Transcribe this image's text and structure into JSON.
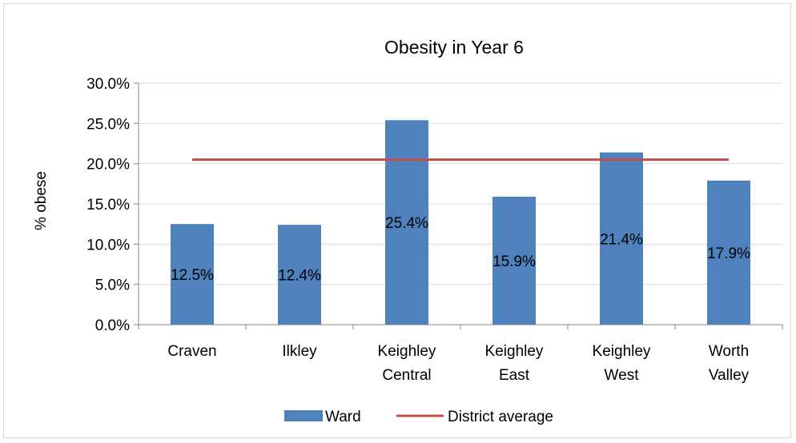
{
  "chart_data": {
    "type": "bar",
    "title": "Obesity in Year 6",
    "ylabel": "% obese",
    "xlabel": "",
    "ylim": [
      0,
      30
    ],
    "yticks": [
      0,
      5,
      10,
      15,
      20,
      25,
      30
    ],
    "ytick_labels": [
      "0.0%",
      "5.0%",
      "10.0%",
      "15.0%",
      "20.0%",
      "25.0%",
      "30.0%"
    ],
    "categories": [
      [
        "Craven"
      ],
      [
        "Ilkley"
      ],
      [
        "Keighley",
        "Central"
      ],
      [
        "Keighley",
        "East"
      ],
      [
        "Keighley",
        "West"
      ],
      [
        "Worth",
        "Valley"
      ]
    ],
    "series": [
      {
        "name": "Ward",
        "type": "bar",
        "color": "#4f81bd",
        "values": [
          12.5,
          12.4,
          25.4,
          15.9,
          21.4,
          17.9
        ],
        "data_labels": [
          "12.5%",
          "12.4%",
          "25.4%",
          "15.9%",
          "21.4%",
          "17.9%"
        ]
      },
      {
        "name": "District average",
        "type": "line",
        "color": "#c0504d",
        "values": [
          20.5,
          20.5,
          20.5,
          20.5,
          20.5,
          20.5
        ]
      }
    ],
    "grid": true,
    "legend_position": "bottom"
  }
}
